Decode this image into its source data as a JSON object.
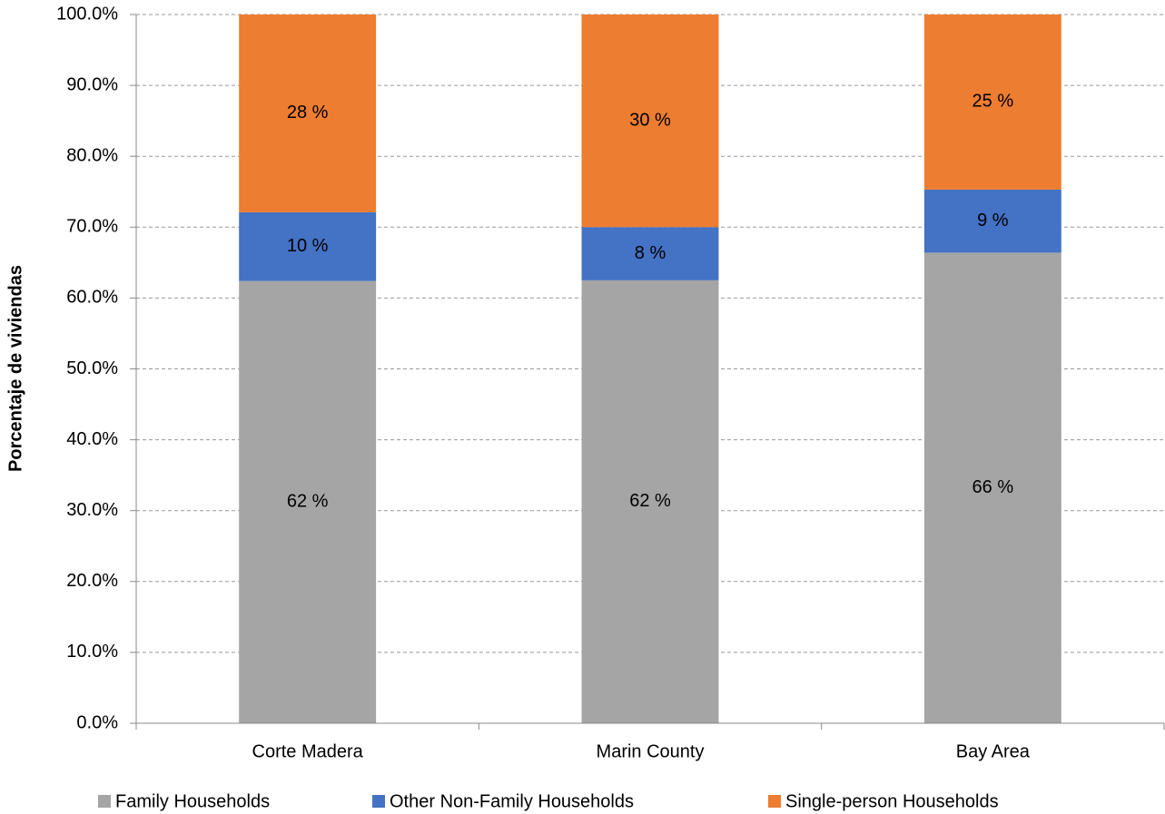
{
  "chart_data": {
    "type": "stacked_bar",
    "y_label": "Porcentaje de viviendas",
    "categories": [
      "Corte Madera",
      "Marin County",
      "Bay Area"
    ],
    "series": [
      {
        "name": "Family Households",
        "color": "#a5a5a5",
        "values": [
          62.4,
          62.5,
          66.4
        ],
        "value_labels": [
          "62 %",
          "62 %",
          "66 %"
        ]
      },
      {
        "name": "Other Non-Family Households",
        "color": "#4472c4",
        "values": [
          9.7,
          7.5,
          8.9
        ],
        "value_labels": [
          "10 %",
          "8 %",
          "9 %"
        ]
      },
      {
        "name": "Single-person Households",
        "color": "#ed7d31",
        "values": [
          27.9,
          30.0,
          24.7
        ],
        "value_labels": [
          "28 %",
          "30 %",
          "25 %"
        ]
      }
    ],
    "ylim": [
      0,
      100
    ],
    "yticks": [
      {
        "value": 0,
        "label": "0.0%"
      },
      {
        "value": 10,
        "label": "10.0%"
      },
      {
        "value": 20,
        "label": "20.0%"
      },
      {
        "value": 30,
        "label": "30.0%"
      },
      {
        "value": 40,
        "label": "40.0%"
      },
      {
        "value": 50,
        "label": "50.0%"
      },
      {
        "value": 60,
        "label": "60.0%"
      },
      {
        "value": 70,
        "label": "70.0%"
      },
      {
        "value": 80,
        "label": "80.0%"
      },
      {
        "value": 90,
        "label": "90.0%"
      },
      {
        "value": 100,
        "label": "100.0%"
      }
    ],
    "grid": true,
    "legend": "bottom"
  }
}
